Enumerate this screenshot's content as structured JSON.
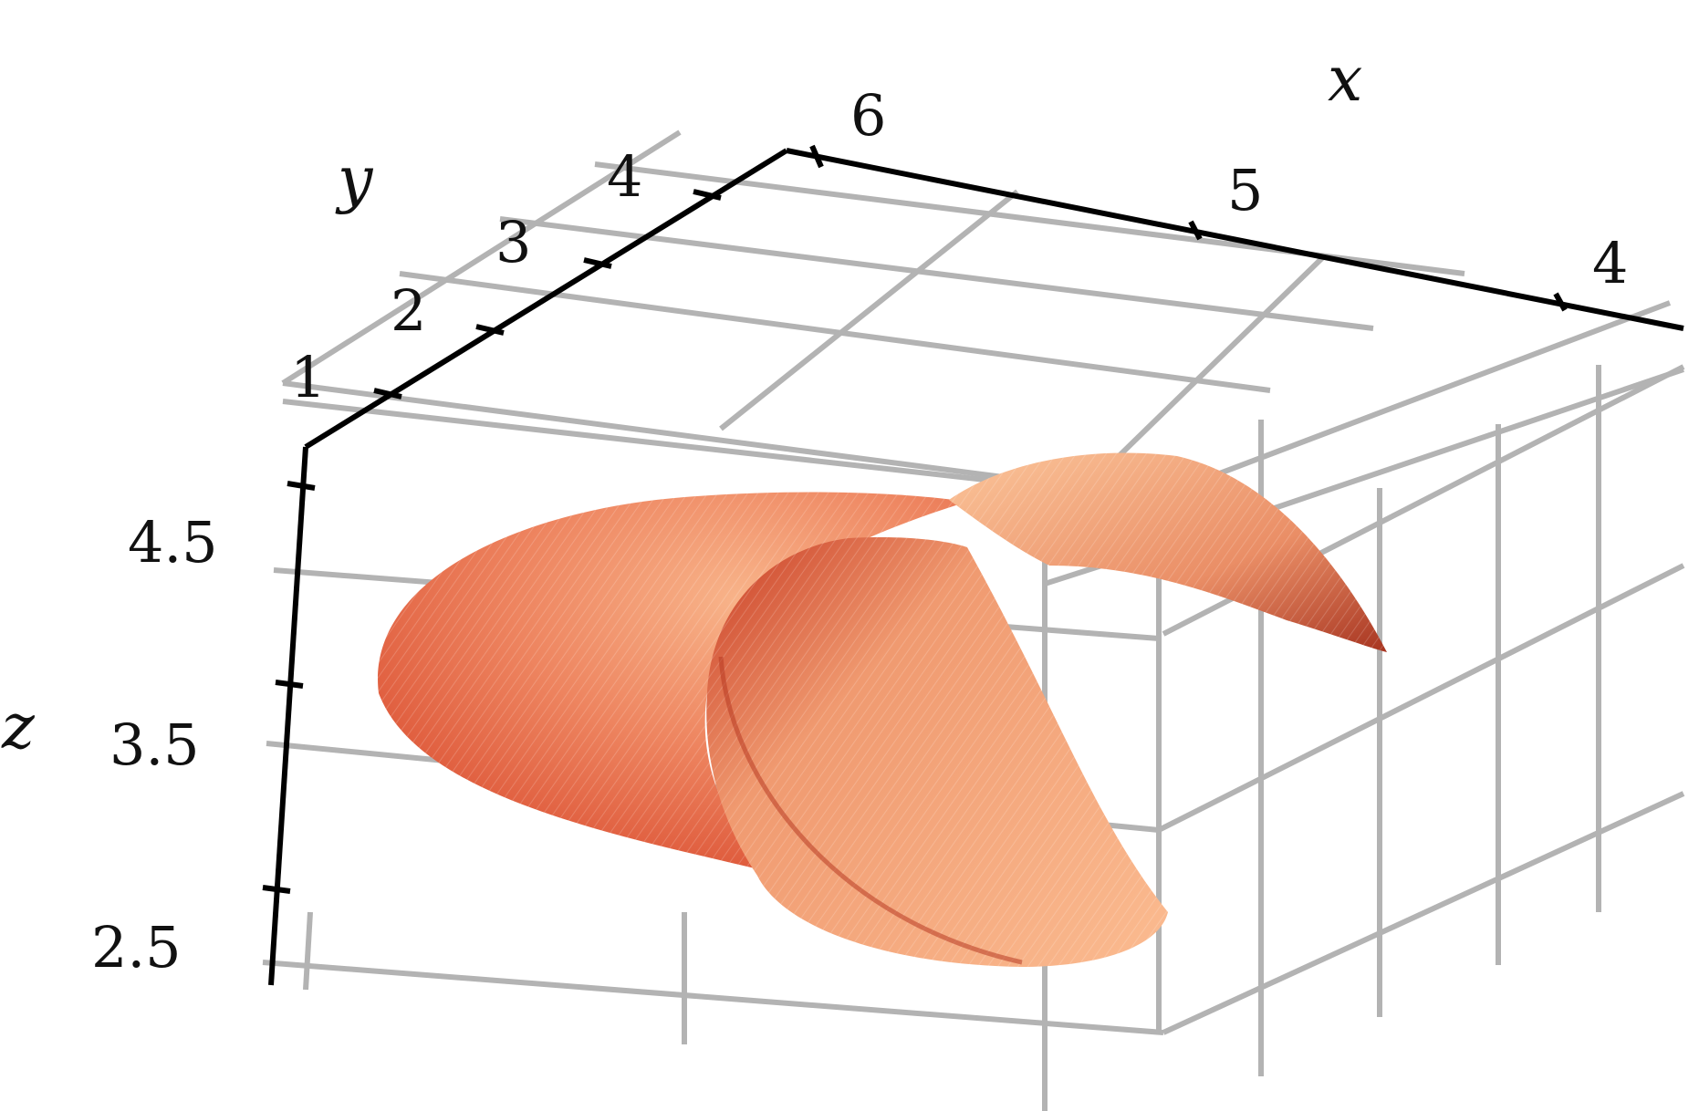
{
  "chart_data": {
    "type": "surface",
    "title": "",
    "axes": {
      "x": {
        "label": "x",
        "ticks": [
          "4",
          "5",
          "6"
        ],
        "range": [
          3.6,
          6.1
        ]
      },
      "y": {
        "label": "y",
        "ticks": [
          "1",
          "2",
          "3",
          "4"
        ],
        "range": [
          0.6,
          4.9
        ]
      },
      "z": {
        "label": "z",
        "ticks": [
          "2.5",
          "3.5",
          "4.5"
        ],
        "range": [
          2.3,
          4.9
        ]
      }
    },
    "grid": true,
    "colormap": [
      "#c8341e",
      "#e8714f",
      "#f4a27a",
      "#fac496"
    ],
    "axis_color": "#000000",
    "grid_color": "#b3b3b3"
  }
}
